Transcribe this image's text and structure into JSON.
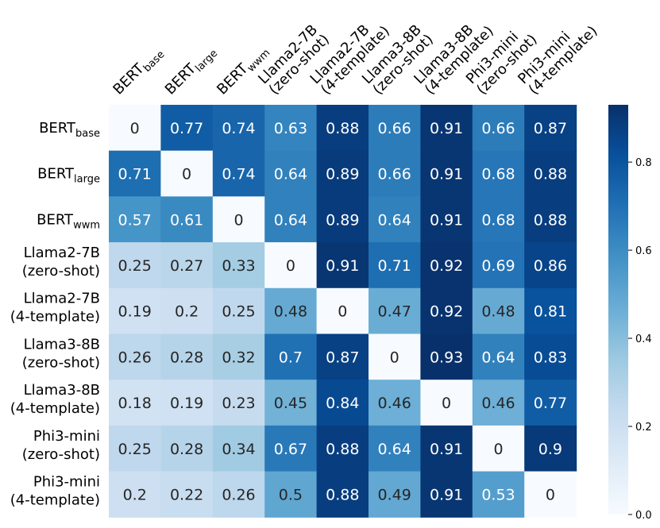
{
  "chart_data": {
    "type": "heatmap",
    "title": "",
    "xlabel": "",
    "ylabel": "",
    "row_labels": [
      {
        "main": "BERT",
        "sub": "base"
      },
      {
        "main": "BERT",
        "sub": "large"
      },
      {
        "main": "BERT",
        "sub": "wwm"
      },
      {
        "lines": [
          "Llama2-7B",
          "(zero-shot)"
        ]
      },
      {
        "lines": [
          "Llama2-7B",
          "(4-template)"
        ]
      },
      {
        "lines": [
          "Llama3-8B",
          "(zero-shot)"
        ]
      },
      {
        "lines": [
          "Llama3-8B",
          "(4-template)"
        ]
      },
      {
        "lines": [
          "Phi3-mini",
          "(zero-shot)"
        ]
      },
      {
        "lines": [
          "Phi3-mini",
          "(4-template)"
        ]
      }
    ],
    "col_labels": [
      {
        "main": "BERT",
        "sub": "base"
      },
      {
        "main": "BERT",
        "sub": "large"
      },
      {
        "main": "BERT",
        "sub": "wwm"
      },
      {
        "lines": [
          "Llama2-7B",
          "(zero-shot)"
        ]
      },
      {
        "lines": [
          "Llama2-7B",
          "(4-template)"
        ]
      },
      {
        "lines": [
          "Llama3-8B",
          "(zero-shot)"
        ]
      },
      {
        "lines": [
          "Llama3-8B",
          "(4-template)"
        ]
      },
      {
        "lines": [
          "Phi3-mini",
          "(zero-shot)"
        ]
      },
      {
        "lines": [
          "Phi3-mini",
          "(4-template)"
        ]
      }
    ],
    "values": [
      [
        0,
        0.77,
        0.74,
        0.63,
        0.88,
        0.66,
        0.91,
        0.66,
        0.87
      ],
      [
        0.71,
        0,
        0.74,
        0.64,
        0.89,
        0.66,
        0.91,
        0.68,
        0.88
      ],
      [
        0.57,
        0.61,
        0,
        0.64,
        0.89,
        0.64,
        0.91,
        0.68,
        0.88
      ],
      [
        0.25,
        0.27,
        0.33,
        0,
        0.91,
        0.71,
        0.92,
        0.69,
        0.86
      ],
      [
        0.19,
        0.2,
        0.25,
        0.48,
        0,
        0.47,
        0.92,
        0.48,
        0.81
      ],
      [
        0.26,
        0.28,
        0.32,
        0.7,
        0.87,
        0,
        0.93,
        0.64,
        0.83
      ],
      [
        0.18,
        0.19,
        0.23,
        0.45,
        0.84,
        0.46,
        0,
        0.46,
        0.77
      ],
      [
        0.25,
        0.28,
        0.34,
        0.67,
        0.88,
        0.64,
        0.91,
        0,
        0.9
      ],
      [
        0.2,
        0.22,
        0.26,
        0.5,
        0.88,
        0.49,
        0.91,
        0.53,
        0
      ]
    ],
    "colormap": "Blues",
    "color_range": [
      0,
      0.93
    ],
    "colorbar_ticks": [
      0.0,
      0.2,
      0.4,
      0.6,
      0.8
    ],
    "colorbar_tick_labels": [
      "0.0",
      "0.2",
      "0.4",
      "0.6",
      "0.8"
    ],
    "colorbar_position": "right",
    "grid": false
  }
}
